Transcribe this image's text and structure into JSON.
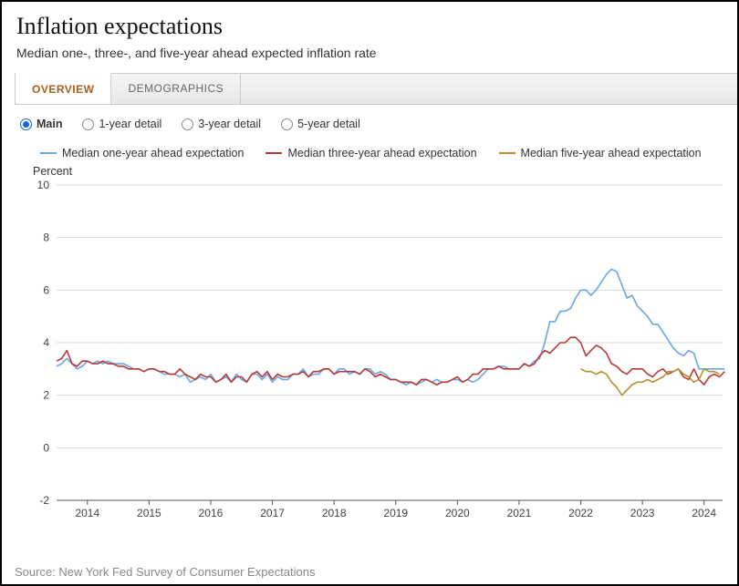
{
  "title": "Inflation expectations",
  "subtitle": "Median one-, three-, and five-year ahead expected inflation rate",
  "tabs": [
    {
      "label": "OVERVIEW",
      "active": true
    },
    {
      "label": "DEMOGRAPHICS",
      "active": false
    }
  ],
  "radios": [
    {
      "label": "Main",
      "selected": true
    },
    {
      "label": "1-year detail",
      "selected": false
    },
    {
      "label": "3-year detail",
      "selected": false
    },
    {
      "label": "5-year detail",
      "selected": false
    }
  ],
  "legend": [
    {
      "label": "Median one-year ahead expectation",
      "color": "#6aa7e8"
    },
    {
      "label": "Median three-year ahead expectation",
      "color": "#b83a36"
    },
    {
      "label": "Median five-year ahead expectation",
      "color": "#b38f2d"
    }
  ],
  "chart": {
    "type": "line",
    "y_axis_title": "Percent",
    "background_color": "#ffffff",
    "grid_color": "#d9d9d9",
    "axis_color": "#555555",
    "axis_font_size": 12,
    "tick_font_size": 12,
    "line_width": 1.6,
    "xlim": [
      2013.5,
      2024.3
    ],
    "ylim": [
      -2,
      10
    ],
    "ytick_step": 2,
    "x_ticks": [
      2014,
      2015,
      2016,
      2017,
      2018,
      2019,
      2020,
      2021,
      2022,
      2023,
      2024
    ],
    "series": [
      {
        "name": "one_year",
        "color": "#6aa7e8",
        "start_year": 2013.5,
        "step_months": 1,
        "values": [
          3.1,
          3.2,
          3.4,
          3.2,
          3.0,
          3.1,
          3.3,
          3.2,
          3.3,
          3.2,
          3.3,
          3.2,
          3.2,
          3.2,
          3.1,
          3.0,
          3.0,
          2.9,
          3.0,
          3.0,
          2.9,
          2.8,
          2.8,
          2.8,
          2.7,
          2.8,
          2.5,
          2.6,
          2.7,
          2.6,
          2.8,
          2.5,
          2.6,
          2.7,
          2.5,
          2.8,
          2.6,
          2.5,
          2.8,
          2.8,
          2.6,
          2.8,
          2.5,
          2.7,
          2.6,
          2.6,
          2.8,
          2.8,
          3.0,
          2.7,
          2.8,
          2.8,
          3.0,
          3.0,
          2.8,
          3.0,
          3.0,
          2.8,
          2.9,
          2.8,
          3.0,
          3.0,
          2.8,
          2.9,
          2.8,
          2.6,
          2.6,
          2.5,
          2.4,
          2.5,
          2.4,
          2.5,
          2.6,
          2.5,
          2.6,
          2.5,
          2.5,
          2.6,
          2.6,
          2.5,
          2.6,
          2.5,
          2.6,
          2.8,
          3.0,
          3.0,
          3.1,
          3.1,
          3.0,
          3.0,
          3.0,
          3.2,
          3.1,
          3.3,
          3.4,
          4.0,
          4.8,
          4.8,
          5.2,
          5.2,
          5.3,
          5.7,
          6.0,
          6.0,
          5.8,
          6.0,
          6.3,
          6.6,
          6.8,
          6.7,
          6.2,
          5.7,
          5.8,
          5.4,
          5.2,
          5.0,
          4.7,
          4.7,
          4.4,
          4.1,
          3.8,
          3.6,
          3.5,
          3.7,
          3.6,
          3.0,
          3.0,
          3.0,
          3.0,
          3.0,
          3.0
        ]
      },
      {
        "name": "three_year",
        "color": "#b83a36",
        "start_year": 2013.5,
        "step_months": 1,
        "values": [
          3.3,
          3.4,
          3.7,
          3.2,
          3.1,
          3.3,
          3.3,
          3.2,
          3.2,
          3.3,
          3.2,
          3.2,
          3.1,
          3.1,
          3.0,
          3.0,
          3.0,
          2.9,
          3.0,
          3.0,
          2.9,
          2.9,
          2.8,
          2.8,
          3.0,
          2.8,
          2.7,
          2.6,
          2.8,
          2.7,
          2.7,
          2.5,
          2.6,
          2.8,
          2.5,
          2.7,
          2.7,
          2.5,
          2.8,
          2.9,
          2.7,
          2.9,
          2.6,
          2.8,
          2.7,
          2.7,
          2.8,
          2.8,
          2.9,
          2.7,
          2.9,
          2.9,
          3.0,
          3.0,
          2.8,
          2.9,
          2.9,
          2.9,
          2.9,
          2.8,
          3.0,
          2.9,
          2.7,
          2.8,
          2.7,
          2.6,
          2.6,
          2.5,
          2.5,
          2.5,
          2.4,
          2.6,
          2.6,
          2.5,
          2.4,
          2.5,
          2.5,
          2.6,
          2.7,
          2.5,
          2.6,
          2.8,
          2.8,
          3.0,
          3.0,
          3.0,
          3.1,
          3.0,
          3.0,
          3.0,
          3.0,
          3.2,
          3.1,
          3.2,
          3.5,
          3.7,
          3.6,
          3.8,
          4.0,
          4.0,
          4.2,
          4.2,
          4.0,
          3.5,
          3.7,
          3.9,
          3.8,
          3.6,
          3.2,
          3.1,
          2.9,
          2.8,
          3.0,
          3.0,
          3.0,
          2.8,
          2.7,
          2.9,
          3.0,
          2.8,
          2.9,
          3.0,
          2.7,
          2.6,
          3.0,
          2.6,
          2.4,
          2.7,
          2.8,
          2.7,
          2.9
        ]
      },
      {
        "name": "five_year",
        "color": "#b38f2d",
        "start_year": 2022.0,
        "step_months": 1,
        "values": [
          3.0,
          2.9,
          2.9,
          2.8,
          2.9,
          2.8,
          2.5,
          2.3,
          2.0,
          2.2,
          2.4,
          2.5,
          2.5,
          2.6,
          2.5,
          2.6,
          2.7,
          2.9,
          2.9,
          3.0,
          2.8,
          2.7,
          2.5,
          2.6,
          3.0,
          2.9,
          2.9,
          2.8
        ]
      }
    ]
  },
  "source_text": "Source: New York Fed Survey of Consumer Expectations"
}
